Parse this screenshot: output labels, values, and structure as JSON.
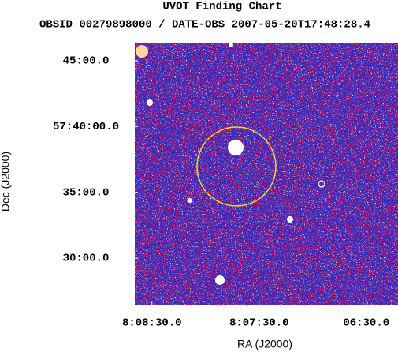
{
  "chart_data": {
    "type": "image",
    "title": "UVOT Finding Chart",
    "subtitle": "OBSID 00279898000 / DATE-OBS 2007-05-20T17:48:28.4",
    "x_label": "RA (J2000)",
    "y_label": "Dec (J2000)",
    "xlim": [
      122.165,
      121.551
    ],
    "ylim": [
      57.441,
      57.772
    ],
    "xticks": [
      {
        "value": 122.125,
        "label": "8:08:30.0"
      },
      {
        "value": 121.875,
        "label": "8:07:30.0"
      },
      {
        "value": 121.625,
        "label": "06:30.0"
      }
    ],
    "yticks": [
      {
        "value": 57.75,
        "label": "45:00.0"
      },
      {
        "value": 57.6667,
        "label": "57:40:00.0"
      },
      {
        "value": 57.5833,
        "label": "35:00.0"
      },
      {
        "value": 57.5,
        "label": "30:00.0"
      }
    ]
  }
}
